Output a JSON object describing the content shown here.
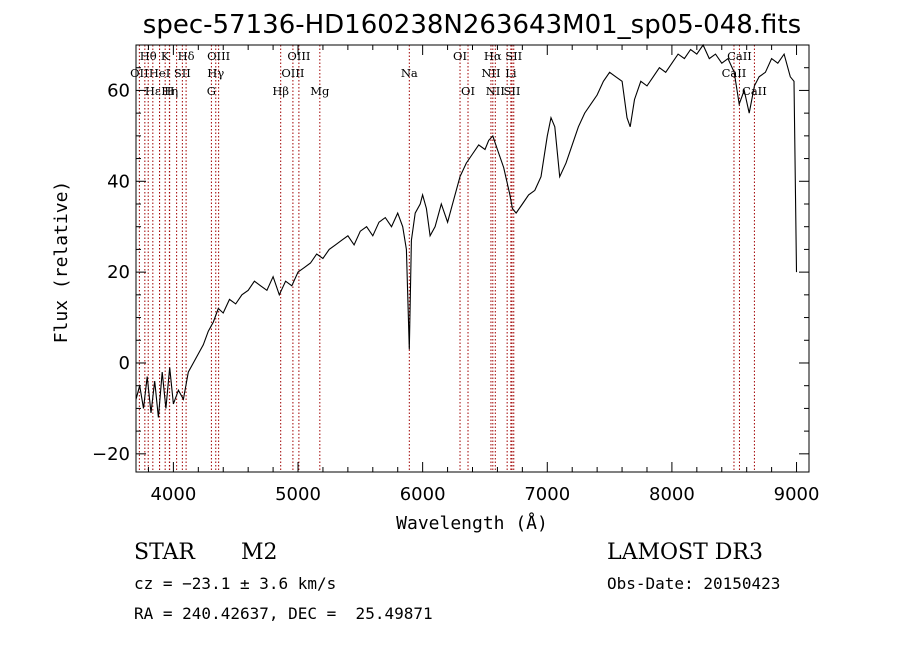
{
  "chart_data": {
    "type": "line",
    "title": "spec-57136-HD160238N263643M01_sp05-048.fits",
    "xlabel": "Wavelength (Å)",
    "ylabel": "Flux (relative)",
    "xlim": [
      3700,
      9100
    ],
    "ylim": [
      -24,
      70
    ],
    "xticks": [
      4000,
      5000,
      6000,
      7000,
      8000,
      9000
    ],
    "yticks": [
      -20,
      0,
      20,
      40,
      60
    ],
    "grid": false,
    "line_color": "#000000",
    "marker_color": "#a00000",
    "series": [
      {
        "x": [
          3700,
          3730,
          3760,
          3790,
          3820,
          3850,
          3880,
          3910,
          3940,
          3970,
          4000,
          4040,
          4080,
          4120,
          4160,
          4200,
          4240,
          4280,
          4320,
          4360,
          4400,
          4450,
          4500,
          4550,
          4600,
          4650,
          4700,
          4750,
          4800,
          4850,
          4900,
          4950,
          5000,
          5050,
          5100,
          5150,
          5200,
          5250,
          5300,
          5350,
          5400,
          5450,
          5500,
          5550,
          5600,
          5650,
          5700,
          5750,
          5800,
          5840,
          5870,
          5893,
          5910,
          5940,
          5980,
          6000,
          6030,
          6060,
          6100,
          6150,
          6200,
          6250,
          6300,
          6350,
          6400,
          6450,
          6500,
          6530,
          6563,
          6600,
          6650,
          6700,
          6720,
          6750,
          6800,
          6850,
          6900,
          6950,
          7000,
          7030,
          7060,
          7100,
          7150,
          7200,
          7250,
          7300,
          7350,
          7400,
          7450,
          7500,
          7550,
          7600,
          7640,
          7665,
          7700,
          7750,
          7800,
          7850,
          7900,
          7950,
          8000,
          8050,
          8100,
          8150,
          8200,
          8250,
          8300,
          8350,
          8400,
          8450,
          8500,
          8540,
          8580,
          8620,
          8662,
          8700,
          8750,
          8800,
          8850,
          8900,
          8950,
          8980,
          9000
        ],
        "y": [
          -8,
          -5,
          -10,
          -3,
          -11,
          -4,
          -12,
          -2,
          -10,
          -1,
          -9,
          -6,
          -8,
          -2,
          0,
          2,
          4,
          7,
          9,
          12,
          11,
          14,
          13,
          15,
          16,
          18,
          17,
          16,
          19,
          15,
          18,
          17,
          20,
          21,
          22,
          24,
          23,
          25,
          26,
          27,
          28,
          26,
          29,
          30,
          28,
          31,
          32,
          30,
          33,
          30,
          25,
          3,
          27,
          33,
          35,
          37,
          34,
          28,
          30,
          35,
          31,
          36,
          41,
          44,
          46,
          48,
          47,
          49,
          50,
          47,
          43,
          37,
          34,
          33,
          35,
          37,
          38,
          41,
          50,
          54,
          52,
          41,
          44,
          48,
          52,
          55,
          57,
          59,
          62,
          64,
          63,
          62,
          54,
          52,
          58,
          62,
          61,
          63,
          65,
          64,
          66,
          68,
          67,
          69,
          68,
          70,
          67,
          68,
          66,
          67,
          64,
          57,
          60,
          55,
          61,
          63,
          64,
          67,
          66,
          68,
          63,
          62,
          20
        ]
      }
    ],
    "spectral_lines": [
      {
        "name": "Hθ",
        "wavelength": 3798,
        "row": 0
      },
      {
        "name": "K",
        "wavelength": 3934,
        "row": 0
      },
      {
        "name": "Hδ",
        "wavelength": 4102,
        "row": 0
      },
      {
        "name": "OIII",
        "wavelength": 4363,
        "row": 0
      },
      {
        "name": "OIII",
        "wavelength": 5007,
        "row": 0
      },
      {
        "name": "OI",
        "wavelength": 6300,
        "row": 0
      },
      {
        "name": "Hα",
        "wavelength": 6563,
        "row": 0
      },
      {
        "name": "SII",
        "wavelength": 6731,
        "row": 0
      },
      {
        "name": "CaII",
        "wavelength": 8542,
        "row": 0
      },
      {
        "name": "OII",
        "wavelength": 3727,
        "row": 1
      },
      {
        "name": "HeI",
        "wavelength": 3889,
        "row": 1
      },
      {
        "name": "SII",
        "wavelength": 4072,
        "row": 1
      },
      {
        "name": "Hγ",
        "wavelength": 4340,
        "row": 1
      },
      {
        "name": "OIII",
        "wavelength": 4959,
        "row": 1
      },
      {
        "name": "Na",
        "wavelength": 5893,
        "row": 1
      },
      {
        "name": "NII",
        "wavelength": 6548,
        "row": 1
      },
      {
        "name": "Li",
        "wavelength": 6708,
        "row": 1
      },
      {
        "name": "CaII",
        "wavelength": 8498,
        "row": 1
      },
      {
        "name": "Hε",
        "wavelength": 3835,
        "row": 2
      },
      {
        "name": "Hη",
        "wavelength": 3970,
        "row": 2
      },
      {
        "name": "H",
        "wavelength": 3968,
        "row": 2
      },
      {
        "name": "G",
        "wavelength": 4305,
        "row": 2
      },
      {
        "name": "Hβ",
        "wavelength": 4861,
        "row": 2
      },
      {
        "name": "Mg",
        "wavelength": 5175,
        "row": 2
      },
      {
        "name": "OI",
        "wavelength": 6364,
        "row": 2
      },
      {
        "name": "NII",
        "wavelength": 6583,
        "row": 2
      },
      {
        "name": "SII",
        "wavelength": 6717,
        "row": 2
      },
      {
        "name": "CaII",
        "wavelength": 8662,
        "row": 2
      }
    ],
    "extra_marker_lines": [
      3771,
      3889,
      4026,
      6678
    ]
  },
  "info": {
    "object_type": "STAR",
    "subclass": "M2",
    "survey": "LAMOST DR3",
    "velocity": "cz = −23.1 ± 3.6 km/s",
    "obs_date": "Obs-Date: 20150423",
    "coords": "RA = 240.42637, DEC =  25.49871"
  }
}
